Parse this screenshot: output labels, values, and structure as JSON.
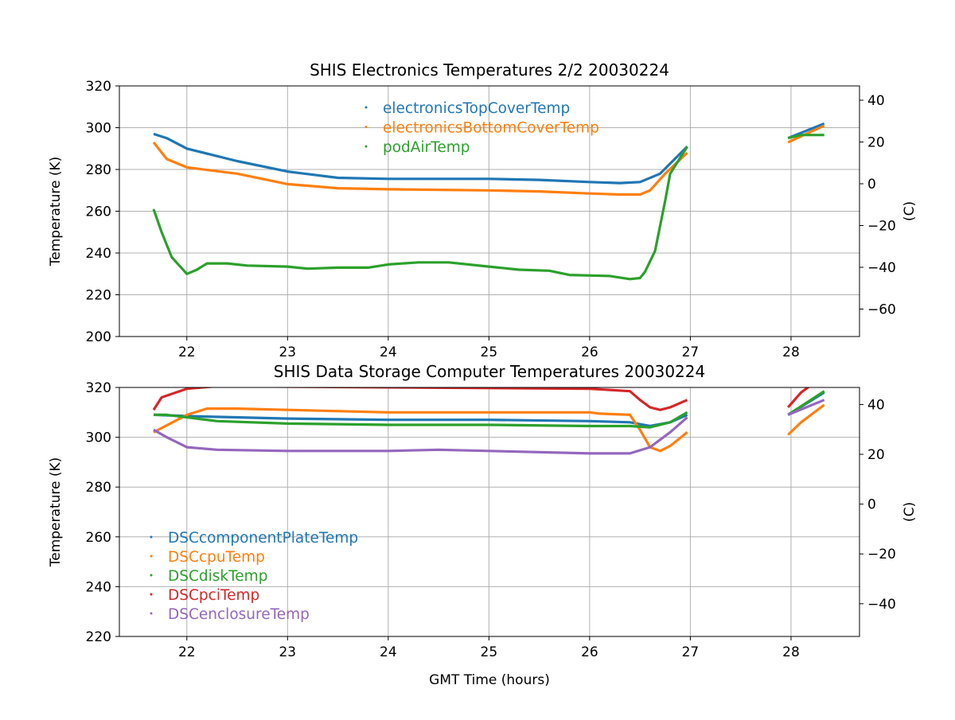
{
  "chart_data": [
    {
      "type": "line",
      "title": "SHIS Electronics Temperatures 2/2 20030224",
      "xlabel": "",
      "ylabel": "Temperature (K)",
      "y2label": "(C)",
      "xlim": [
        21.33,
        28.68
      ],
      "ylim": [
        200,
        320
      ],
      "xticks": [
        22,
        23,
        24,
        25,
        26,
        27,
        28
      ],
      "yticks": [
        200,
        220,
        240,
        260,
        280,
        300,
        320
      ],
      "y2ticks": [
        -60,
        -40,
        -20,
        0,
        20,
        40
      ],
      "grid": true,
      "legend": "top-center",
      "series": [
        {
          "name": "electronicsTopCoverTemp",
          "color": "#1f77b4",
          "points": [
            [
              21.67,
              297
            ],
            [
              21.8,
              295
            ],
            [
              22,
              290
            ],
            [
              22.5,
              284
            ],
            [
              23,
              279
            ],
            [
              23.5,
              276
            ],
            [
              24,
              275.5
            ],
            [
              24.5,
              275.5
            ],
            [
              25,
              275.5
            ],
            [
              25.5,
              275
            ],
            [
              26,
              274
            ],
            [
              26.3,
              273.5
            ],
            [
              26.5,
              274
            ],
            [
              26.7,
              278
            ],
            [
              26.97,
              291
            ],
            null,
            [
              27.97,
              295
            ],
            [
              28.33,
              302
            ]
          ]
        },
        {
          "name": "electronicsBottomCoverTemp",
          "color": "#ff7f0e",
          "points": [
            [
              21.67,
              293
            ],
            [
              21.8,
              285
            ],
            [
              22,
              281
            ],
            [
              22.5,
              278
            ],
            [
              23,
              273
            ],
            [
              23.5,
              271
            ],
            [
              24,
              270.5
            ],
            [
              25,
              270
            ],
            [
              25.5,
              269.5
            ],
            [
              26,
              268.5
            ],
            [
              26.3,
              268
            ],
            [
              26.5,
              268
            ],
            [
              26.6,
              270
            ],
            [
              26.75,
              278
            ],
            [
              26.97,
              288
            ],
            null,
            [
              27.97,
              293
            ],
            [
              28.33,
              301
            ]
          ]
        },
        {
          "name": "podAirTemp",
          "color": "#2ca02c",
          "points": [
            [
              21.67,
              261
            ],
            [
              21.75,
              250
            ],
            [
              21.85,
              238
            ],
            [
              22,
              230
            ],
            [
              22.1,
              232
            ],
            [
              22.2,
              235
            ],
            [
              22.4,
              235
            ],
            [
              22.6,
              234
            ],
            [
              23,
              233.5
            ],
            [
              23.2,
              232.5
            ],
            [
              23.5,
              233
            ],
            [
              23.8,
              233
            ],
            [
              24,
              234.5
            ],
            [
              24.3,
              235.5
            ],
            [
              24.6,
              235.5
            ],
            [
              25,
              233.5
            ],
            [
              25.3,
              232
            ],
            [
              25.6,
              231.5
            ],
            [
              25.8,
              229.5
            ],
            [
              26.2,
              229
            ],
            [
              26.4,
              227.5
            ],
            [
              26.5,
              228
            ],
            [
              26.55,
              231
            ],
            [
              26.65,
              241
            ],
            [
              26.75,
              265
            ],
            [
              26.8,
              278
            ],
            [
              26.97,
              291
            ],
            null,
            [
              27.97,
              295
            ],
            [
              28.1,
              296.5
            ],
            [
              28.33,
              296.5
            ]
          ]
        }
      ]
    },
    {
      "type": "line",
      "title": "SHIS Data Storage Computer Temperatures 20030224",
      "xlabel": "GMT Time (hours)",
      "ylabel": "Temperature (K)",
      "y2label": "(C)",
      "xlim": [
        21.33,
        28.68
      ],
      "ylim": [
        220,
        320
      ],
      "xticks": [
        22,
        23,
        24,
        25,
        26,
        27,
        28
      ],
      "yticks": [
        220,
        240,
        260,
        280,
        300,
        320
      ],
      "y2ticks": [
        -40,
        -20,
        0,
        20,
        40
      ],
      "grid": true,
      "legend": "center-left",
      "series": [
        {
          "name": "DSCcomponentPlateTemp",
          "color": "#1f77b4",
          "points": [
            [
              21.67,
              309
            ],
            [
              22,
              308.5
            ],
            [
              23,
              307.5
            ],
            [
              24,
              307
            ],
            [
              25,
              307
            ],
            [
              26,
              306.5
            ],
            [
              26.4,
              306
            ],
            [
              26.6,
              304.5
            ],
            [
              26.8,
              306
            ],
            [
              26.97,
              309
            ],
            null,
            [
              27.97,
              309
            ],
            [
              28.33,
              318
            ]
          ]
        },
        {
          "name": "DSCcpuTemp",
          "color": "#ff7f0e",
          "points": [
            [
              21.67,
              302
            ],
            [
              22,
              309
            ],
            [
              22.2,
              311.5
            ],
            [
              22.5,
              311.5
            ],
            [
              23,
              311
            ],
            [
              24,
              310
            ],
            [
              25,
              310
            ],
            [
              26,
              310
            ],
            [
              26.1,
              309.5
            ],
            [
              26.4,
              309
            ],
            [
              26.5,
              303
            ],
            [
              26.6,
              296
            ],
            [
              26.7,
              294.5
            ],
            [
              26.8,
              296.5
            ],
            [
              26.97,
              302
            ],
            null,
            [
              27.97,
              301
            ],
            [
              28.1,
              306
            ],
            [
              28.33,
              313
            ]
          ]
        },
        {
          "name": "DSCdiskTemp",
          "color": "#2ca02c",
          "points": [
            [
              21.67,
              309
            ],
            [
              21.8,
              309
            ],
            [
              22,
              308
            ],
            [
              22.3,
              306.5
            ],
            [
              23,
              305.5
            ],
            [
              24,
              305
            ],
            [
              25,
              305
            ],
            [
              26,
              304.5
            ],
            [
              26.4,
              304.5
            ],
            [
              26.6,
              304
            ],
            [
              26.8,
              306
            ],
            [
              26.97,
              310
            ],
            null,
            [
              27.97,
              309
            ],
            [
              28.33,
              318.5
            ]
          ]
        },
        {
          "name": "DSCpciTemp",
          "color": "#d62728",
          "points": [
            [
              21.67,
              311
            ],
            [
              21.75,
              316
            ],
            [
              22,
              319.5
            ],
            [
              22.3,
              320.5
            ],
            [
              26,
              319.5
            ],
            [
              26.4,
              318.5
            ],
            [
              26.5,
              315
            ],
            [
              26.6,
              312
            ],
            [
              26.7,
              311
            ],
            [
              26.8,
              312
            ],
            [
              26.97,
              315
            ],
            null,
            [
              27.97,
              312
            ],
            [
              28.1,
              318
            ],
            [
              28.2,
              321
            ]
          ]
        },
        {
          "name": "DSCenclosureTemp",
          "color": "#9467bd",
          "points": [
            [
              21.67,
              303
            ],
            [
              21.8,
              300
            ],
            [
              22,
              296
            ],
            [
              22.3,
              295
            ],
            [
              23,
              294.5
            ],
            [
              24,
              294.5
            ],
            [
              24.5,
              295
            ],
            [
              25,
              294.5
            ],
            [
              26,
              293.5
            ],
            [
              26.4,
              293.5
            ],
            [
              26.6,
              296
            ],
            [
              26.8,
              302
            ],
            [
              26.97,
              308
            ],
            null,
            [
              27.97,
              309
            ],
            [
              28.33,
              315
            ]
          ]
        }
      ]
    }
  ]
}
